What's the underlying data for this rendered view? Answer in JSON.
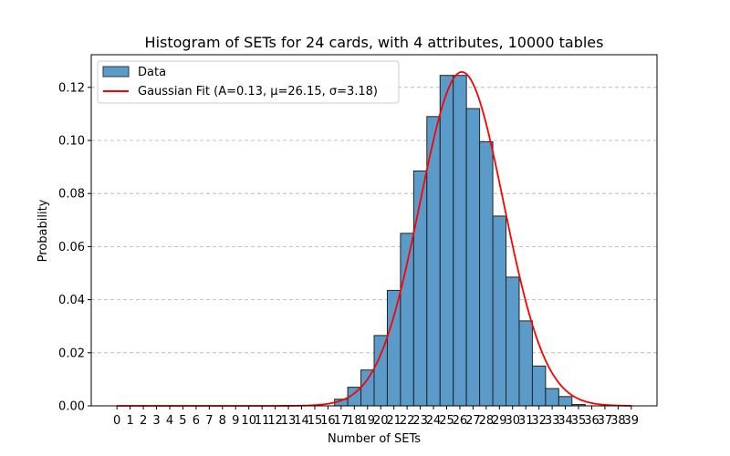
{
  "chart_data": {
    "type": "bar",
    "title": "Histogram of SETs for 24 cards, with 4 attributes, 10000 tables",
    "xlabel": "Number of SETs",
    "ylabel": "Probability",
    "xlim": [
      -1.95,
      40.95
    ],
    "ylim": [
      0,
      0.1323
    ],
    "x_ticks": [
      0,
      1,
      2,
      3,
      4,
      5,
      6,
      7,
      8,
      9,
      10,
      11,
      12,
      13,
      14,
      15,
      16,
      17,
      18,
      19,
      20,
      21,
      22,
      23,
      24,
      25,
      26,
      27,
      28,
      29,
      30,
      31,
      32,
      33,
      34,
      35,
      36,
      37,
      38,
      39
    ],
    "y_ticks": [
      0.0,
      0.02,
      0.04,
      0.06,
      0.08,
      0.1,
      0.12
    ],
    "y_tick_labels": [
      "0.00",
      "0.02",
      "0.04",
      "0.06",
      "0.08",
      "0.10",
      "0.12"
    ],
    "grid": "y-dashed",
    "legend_position": "top-left",
    "bar_color": "#5b9bc9",
    "curve_color": "#ff0000",
    "series": [
      {
        "name": "Data",
        "type": "bar",
        "x": [
          17,
          18,
          19,
          20,
          21,
          22,
          23,
          24,
          25,
          26,
          27,
          28,
          29,
          30,
          31,
          32,
          33,
          34,
          35
        ],
        "values": [
          0.0025,
          0.007,
          0.0135,
          0.0265,
          0.0435,
          0.065,
          0.0885,
          0.109,
          0.1245,
          0.1245,
          0.112,
          0.0995,
          0.0715,
          0.0485,
          0.032,
          0.015,
          0.0065,
          0.0035,
          0.0005
        ]
      },
      {
        "name": "Gaussian Fit (A=0.13, μ=26.15, σ=3.18)",
        "type": "line",
        "A": 0.1258,
        "mu": 26.15,
        "sigma": 3.18,
        "x_range": [
          0,
          39
        ]
      }
    ]
  }
}
